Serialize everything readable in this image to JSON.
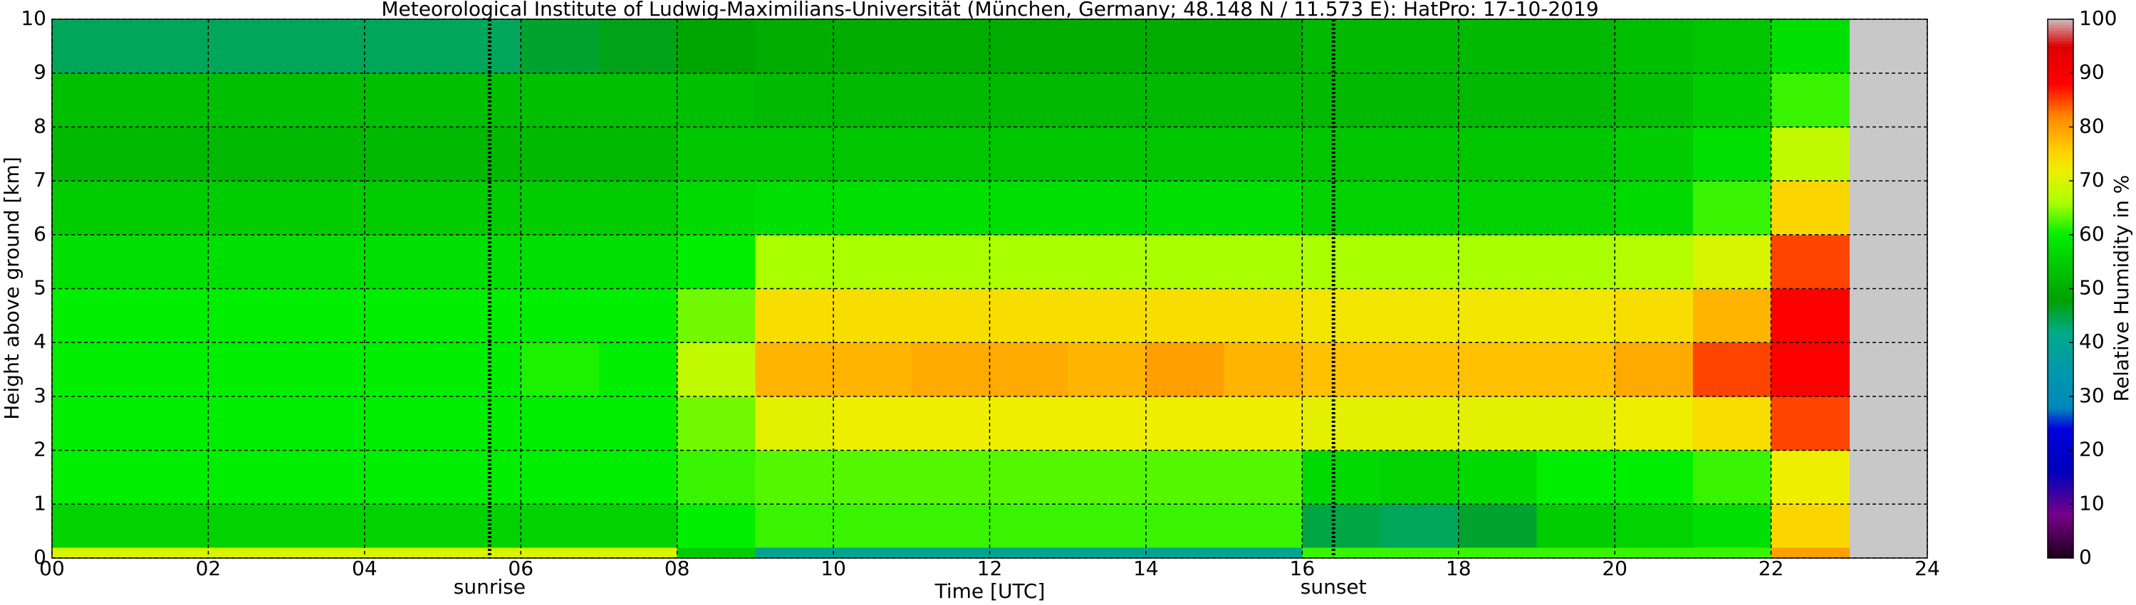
{
  "chart_data": {
    "type": "heatmap",
    "title": "Meteorological Institute of Ludwig-Maximilians-Universität (München, Germany; 48.148 N / 11.573 E):    HatPro: 17-10-2019",
    "xlabel": "Time [UTC]",
    "ylabel": "Height above ground [km]",
    "colorbar_label": "Relative Humidity in %",
    "xlim": [
      0,
      24
    ],
    "xticks": [
      {
        "value": 0,
        "label": "00"
      },
      {
        "value": 2,
        "label": "02"
      },
      {
        "value": 4,
        "label": "04"
      },
      {
        "value": 6,
        "label": "06"
      },
      {
        "value": 8,
        "label": "08"
      },
      10,
      12,
      14,
      16,
      18,
      20,
      22,
      24
    ],
    "ylim": [
      0,
      10
    ],
    "yticks": [
      0,
      1,
      2,
      3,
      4,
      5,
      6,
      7,
      8,
      9,
      10
    ],
    "clim": [
      0,
      100
    ],
    "cticks": [
      0,
      10,
      20,
      30,
      40,
      50,
      60,
      70,
      80,
      90,
      100
    ],
    "grid": true,
    "missing_color": "#c8c8c8",
    "colorscale": [
      [
        0,
        "#1a001a"
      ],
      [
        8,
        "#770088"
      ],
      [
        16,
        "#0000bb"
      ],
      [
        24,
        "#0000dd"
      ],
      [
        28,
        "#0088bb"
      ],
      [
        35,
        "#0099aa"
      ],
      [
        42,
        "#00aa88"
      ],
      [
        48,
        "#00a000"
      ],
      [
        55,
        "#00cc00"
      ],
      [
        60,
        "#00ee00"
      ],
      [
        66,
        "#aaff00"
      ],
      [
        72,
        "#eeee00"
      ],
      [
        76,
        "#ffcc00"
      ],
      [
        82,
        "#ff8800"
      ],
      [
        88,
        "#ff0000"
      ],
      [
        95,
        "#dd0000"
      ],
      [
        100,
        "#ccbbbb"
      ]
    ],
    "x_edges": [
      0,
      1,
      2,
      3,
      4,
      5,
      6,
      7,
      8,
      9,
      10,
      11,
      12,
      13,
      14,
      15,
      16,
      17,
      18,
      19,
      20,
      21,
      22,
      23
    ],
    "y_edges": [
      0,
      0.2,
      1,
      2,
      3,
      4,
      5,
      6,
      7,
      8,
      9,
      10
    ],
    "z": [
      [
        70,
        70,
        70,
        70,
        70,
        70,
        70,
        70,
        55,
        40,
        40,
        40,
        40,
        40,
        40,
        40,
        62,
        62,
        62,
        62,
        62,
        62,
        80
      ],
      [
        56,
        56,
        56,
        56,
        56,
        56,
        56,
        56,
        60,
        62,
        62,
        62,
        62,
        62,
        62,
        62,
        45,
        44,
        46,
        55,
        56,
        58,
        75
      ],
      [
        60,
        60,
        60,
        60,
        60,
        60,
        60,
        60,
        62,
        63,
        63,
        63,
        63,
        63,
        63,
        63,
        57,
        56,
        57,
        60,
        60,
        62,
        72
      ],
      [
        60,
        60,
        60,
        60,
        60,
        60,
        60,
        60,
        64,
        71,
        72,
        72,
        72,
        72,
        72,
        72,
        71,
        71,
        71,
        71,
        72,
        74,
        85
      ],
      [
        60,
        60,
        60,
        60,
        60,
        60,
        61,
        60,
        68,
        78,
        78,
        79,
        79,
        78,
        80,
        78,
        77,
        77,
        77,
        77,
        79,
        85,
        88
      ],
      [
        60,
        60,
        60,
        60,
        60,
        60,
        60,
        60,
        64,
        74,
        74,
        74,
        74,
        74,
        74,
        74,
        73,
        73,
        73,
        73,
        74,
        78,
        88
      ],
      [
        58,
        58,
        58,
        58,
        58,
        58,
        58,
        58,
        60,
        66,
        66,
        66,
        66,
        66,
        66,
        66,
        66,
        66,
        66,
        66,
        67,
        70,
        85
      ],
      [
        55,
        55,
        55,
        55,
        55,
        55,
        55,
        55,
        57,
        58,
        58,
        58,
        58,
        58,
        58,
        58,
        56,
        56,
        56,
        56,
        57,
        62,
        75
      ],
      [
        52,
        52,
        52,
        52,
        52,
        52,
        52,
        52,
        54,
        54,
        54,
        54,
        54,
        54,
        54,
        54,
        54,
        54,
        54,
        54,
        55,
        58,
        68
      ],
      [
        53,
        53,
        53,
        53,
        53,
        53,
        53,
        53,
        53,
        52,
        52,
        52,
        52,
        52,
        52,
        52,
        52,
        52,
        52,
        52,
        53,
        55,
        62
      ],
      [
        44,
        44,
        44,
        44,
        44,
        44,
        46,
        47,
        49,
        50,
        50,
        50,
        50,
        50,
        50,
        50,
        52,
        52,
        52,
        52,
        53,
        54,
        58
      ]
    ],
    "annotations": [
      {
        "text": "sunrise",
        "x": 5.6
      },
      {
        "text": "sunset",
        "x": 16.4
      }
    ]
  }
}
